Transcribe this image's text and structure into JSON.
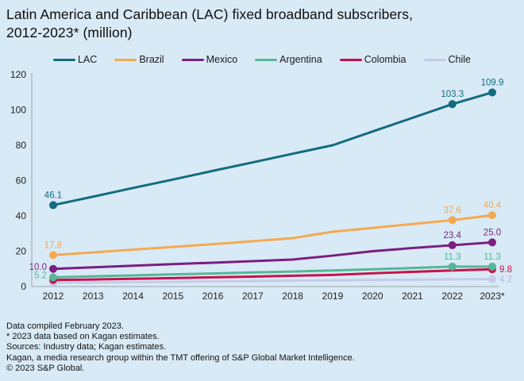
{
  "header": {
    "title_lines": [
      "Latin America and Caribbean (LAC) fixed broadband subscribers,",
      "2012-2023* (million)"
    ]
  },
  "footer": {
    "lines": [
      "Data compiled February 2023.",
      "* 2023 data based on Kagan estimates.",
      "Sources: Industry data; Kagan estimates.",
      "Kagan, a media research group within the TMT offering of S&P Global Market Intelligence.",
      "© 2023 S&P Global."
    ]
  },
  "colors": {
    "background": "#d8eaf6",
    "axis": "#9aa4aa",
    "text": "#121212"
  },
  "chart_data": {
    "type": "line",
    "title": "Latin America and Caribbean (LAC) fixed broadband subscribers, 2012-2023* (million)",
    "categories": [
      "2012",
      "2013",
      "2014",
      "2015",
      "2016",
      "2017",
      "2018",
      "2019",
      "2020",
      "2021",
      "2022",
      "2023*"
    ],
    "ylim": [
      0,
      120
    ],
    "yticks": [
      0,
      20,
      40,
      60,
      80,
      100,
      120
    ],
    "grid": false,
    "legend_position": "top",
    "series": [
      {
        "name": "LAC",
        "color": "#136b80",
        "values": [
          46.1,
          50.9,
          55.8,
          60.6,
          65.5,
          70.3,
          75.2,
          80.0,
          87.8,
          95.5,
          103.3,
          109.9
        ],
        "dot_indices": [
          0,
          10,
          11
        ],
        "labeled_points": [
          {
            "index": 0,
            "label": "46.1",
            "position": "above"
          },
          {
            "index": 10,
            "label": "103.3",
            "position": "above"
          },
          {
            "index": 11,
            "label": "109.9",
            "position": "above"
          }
        ]
      },
      {
        "name": "Brazil",
        "color": "#f4a950",
        "values": [
          17.8,
          19.3,
          20.9,
          22.4,
          24.0,
          25.7,
          27.4,
          31.0,
          33.2,
          35.4,
          37.6,
          40.4
        ],
        "dot_indices": [
          0,
          10,
          11
        ],
        "labeled_points": [
          {
            "index": 0,
            "label": "17.8",
            "position": "above"
          },
          {
            "index": 10,
            "label": "37.6",
            "position": "above"
          },
          {
            "index": 11,
            "label": "40.4",
            "position": "above"
          }
        ]
      },
      {
        "name": "Mexico",
        "color": "#7c1e7f",
        "values": [
          10.0,
          10.9,
          11.8,
          12.7,
          13.5,
          14.4,
          15.3,
          17.5,
          20.0,
          21.8,
          23.4,
          25.0
        ],
        "dot_indices": [
          0,
          10,
          11
        ],
        "labeled_points": [
          {
            "index": 0,
            "label": "10.0",
            "position": "left"
          },
          {
            "index": 10,
            "label": "23.4",
            "position": "above"
          },
          {
            "index": 11,
            "label": "25.0",
            "position": "above"
          }
        ]
      },
      {
        "name": "Argentina",
        "color": "#55b796",
        "values": [
          5.2,
          5.8,
          6.3,
          6.9,
          7.4,
          8.0,
          8.5,
          9.1,
          9.8,
          10.5,
          11.3,
          11.3
        ],
        "dot_indices": [
          0,
          10,
          11
        ],
        "labeled_points": [
          {
            "index": 0,
            "label": "5.2",
            "position": "left"
          },
          {
            "index": 10,
            "label": "11.3",
            "position": "above"
          },
          {
            "index": 11,
            "label": "11.3",
            "position": "above"
          }
        ]
      },
      {
        "name": "Colombia",
        "color": "#c8114b",
        "values": [
          3.7,
          4.0,
          4.4,
          4.8,
          5.2,
          5.6,
          6.1,
          6.6,
          7.5,
          8.3,
          9.1,
          9.8
        ],
        "dot_indices": [
          0,
          11
        ],
        "labeled_points": [
          {
            "index": 11,
            "label": "9.8",
            "position": "right"
          }
        ]
      },
      {
        "name": "Chile",
        "color": "#c6cbe8",
        "label_color": "#b4badf",
        "values": [
          2.2,
          2.4,
          2.5,
          2.7,
          2.9,
          3.1,
          3.3,
          3.5,
          3.7,
          3.9,
          4.1,
          4.2
        ],
        "dot_indices": [
          0,
          11
        ],
        "labeled_points": [
          {
            "index": 11,
            "label": "4.2",
            "position": "right"
          }
        ]
      }
    ]
  }
}
